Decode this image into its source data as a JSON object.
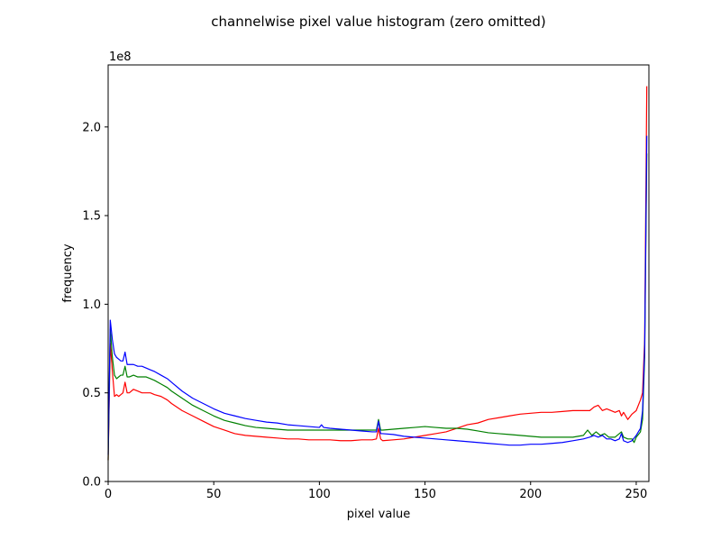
{
  "chart_data": {
    "type": "line",
    "title": "channelwise pixel value histogram (zero omitted)",
    "xlabel": "pixel value",
    "ylabel": "frequency",
    "y_offset_label": "1e8",
    "xlim": [
      0,
      256
    ],
    "ylim": [
      0,
      2.35
    ],
    "y_unit_multiplier": 100000000,
    "x_ticks": [
      0,
      50,
      100,
      150,
      200,
      250
    ],
    "x_tick_labels": [
      "0",
      "50",
      "100",
      "150",
      "200",
      "250"
    ],
    "y_ticks": [
      0,
      0.5,
      1.0,
      1.5,
      2.0
    ],
    "y_tick_labels": [
      "0.0",
      "0.5",
      "1.0",
      "1.5",
      "2.0"
    ],
    "grid": false,
    "legend": "none",
    "series": [
      {
        "color": "#ff0000",
        "points": [
          [
            0,
            0.12
          ],
          [
            1,
            0.78
          ],
          [
            2,
            0.62
          ],
          [
            3,
            0.48
          ],
          [
            4,
            0.49
          ],
          [
            5,
            0.48
          ],
          [
            6,
            0.49
          ],
          [
            7,
            0.5
          ],
          [
            8,
            0.56
          ],
          [
            9,
            0.5
          ],
          [
            10,
            0.5
          ],
          [
            12,
            0.52
          ],
          [
            14,
            0.51
          ],
          [
            16,
            0.5
          ],
          [
            18,
            0.5
          ],
          [
            20,
            0.5
          ],
          [
            22,
            0.49
          ],
          [
            25,
            0.48
          ],
          [
            28,
            0.46
          ],
          [
            30,
            0.44
          ],
          [
            35,
            0.4
          ],
          [
            40,
            0.37
          ],
          [
            45,
            0.34
          ],
          [
            50,
            0.31
          ],
          [
            55,
            0.29
          ],
          [
            60,
            0.27
          ],
          [
            65,
            0.26
          ],
          [
            70,
            0.255
          ],
          [
            75,
            0.25
          ],
          [
            80,
            0.245
          ],
          [
            85,
            0.24
          ],
          [
            90,
            0.24
          ],
          [
            95,
            0.235
          ],
          [
            100,
            0.235
          ],
          [
            105,
            0.235
          ],
          [
            110,
            0.23
          ],
          [
            115,
            0.23
          ],
          [
            120,
            0.235
          ],
          [
            125,
            0.235
          ],
          [
            127,
            0.24
          ],
          [
            128,
            0.3
          ],
          [
            129,
            0.24
          ],
          [
            130,
            0.23
          ],
          [
            135,
            0.235
          ],
          [
            140,
            0.24
          ],
          [
            145,
            0.25
          ],
          [
            150,
            0.26
          ],
          [
            155,
            0.27
          ],
          [
            160,
            0.28
          ],
          [
            165,
            0.3
          ],
          [
            170,
            0.32
          ],
          [
            175,
            0.33
          ],
          [
            180,
            0.35
          ],
          [
            185,
            0.36
          ],
          [
            190,
            0.37
          ],
          [
            195,
            0.38
          ],
          [
            200,
            0.385
          ],
          [
            205,
            0.39
          ],
          [
            210,
            0.39
          ],
          [
            215,
            0.395
          ],
          [
            220,
            0.4
          ],
          [
            225,
            0.4
          ],
          [
            228,
            0.4
          ],
          [
            230,
            0.42
          ],
          [
            232,
            0.43
          ],
          [
            234,
            0.4
          ],
          [
            236,
            0.41
          ],
          [
            238,
            0.4
          ],
          [
            240,
            0.39
          ],
          [
            242,
            0.4
          ],
          [
            243,
            0.37
          ],
          [
            244,
            0.39
          ],
          [
            246,
            0.35
          ],
          [
            248,
            0.38
          ],
          [
            250,
            0.4
          ],
          [
            252,
            0.46
          ],
          [
            253,
            0.5
          ],
          [
            254,
            0.8
          ],
          [
            255,
            2.23
          ]
        ]
      },
      {
        "color": "#008000",
        "points": [
          [
            0,
            0.12
          ],
          [
            1,
            0.86
          ],
          [
            2,
            0.7
          ],
          [
            3,
            0.6
          ],
          [
            4,
            0.58
          ],
          [
            5,
            0.59
          ],
          [
            6,
            0.6
          ],
          [
            7,
            0.6
          ],
          [
            8,
            0.65
          ],
          [
            9,
            0.59
          ],
          [
            10,
            0.59
          ],
          [
            12,
            0.6
          ],
          [
            14,
            0.59
          ],
          [
            16,
            0.59
          ],
          [
            18,
            0.59
          ],
          [
            20,
            0.58
          ],
          [
            22,
            0.57
          ],
          [
            25,
            0.55
          ],
          [
            28,
            0.53
          ],
          [
            30,
            0.51
          ],
          [
            35,
            0.47
          ],
          [
            40,
            0.43
          ],
          [
            45,
            0.4
          ],
          [
            50,
            0.37
          ],
          [
            55,
            0.345
          ],
          [
            60,
            0.33
          ],
          [
            65,
            0.315
          ],
          [
            70,
            0.305
          ],
          [
            75,
            0.3
          ],
          [
            80,
            0.295
          ],
          [
            85,
            0.29
          ],
          [
            90,
            0.29
          ],
          [
            95,
            0.29
          ],
          [
            100,
            0.29
          ],
          [
            105,
            0.29
          ],
          [
            110,
            0.29
          ],
          [
            115,
            0.29
          ],
          [
            120,
            0.29
          ],
          [
            125,
            0.29
          ],
          [
            127,
            0.29
          ],
          [
            128,
            0.35
          ],
          [
            129,
            0.29
          ],
          [
            130,
            0.29
          ],
          [
            135,
            0.295
          ],
          [
            140,
            0.3
          ],
          [
            145,
            0.305
          ],
          [
            150,
            0.31
          ],
          [
            155,
            0.305
          ],
          [
            160,
            0.3
          ],
          [
            165,
            0.3
          ],
          [
            170,
            0.295
          ],
          [
            175,
            0.285
          ],
          [
            180,
            0.275
          ],
          [
            185,
            0.27
          ],
          [
            190,
            0.265
          ],
          [
            195,
            0.26
          ],
          [
            200,
            0.255
          ],
          [
            205,
            0.25
          ],
          [
            210,
            0.25
          ],
          [
            215,
            0.25
          ],
          [
            220,
            0.25
          ],
          [
            225,
            0.26
          ],
          [
            227,
            0.29
          ],
          [
            229,
            0.26
          ],
          [
            231,
            0.28
          ],
          [
            233,
            0.26
          ],
          [
            235,
            0.27
          ],
          [
            237,
            0.25
          ],
          [
            240,
            0.25
          ],
          [
            243,
            0.28
          ],
          [
            244,
            0.25
          ],
          [
            246,
            0.24
          ],
          [
            248,
            0.24
          ],
          [
            249,
            0.22
          ],
          [
            250,
            0.25
          ],
          [
            252,
            0.28
          ],
          [
            253,
            0.35
          ],
          [
            254,
            0.7
          ],
          [
            255,
            1.85
          ]
        ]
      },
      {
        "color": "#0000ff",
        "points": [
          [
            0,
            0.15
          ],
          [
            1,
            0.91
          ],
          [
            2,
            0.8
          ],
          [
            3,
            0.72
          ],
          [
            4,
            0.7
          ],
          [
            5,
            0.69
          ],
          [
            6,
            0.68
          ],
          [
            7,
            0.68
          ],
          [
            8,
            0.73
          ],
          [
            9,
            0.66
          ],
          [
            10,
            0.66
          ],
          [
            12,
            0.66
          ],
          [
            14,
            0.65
          ],
          [
            16,
            0.65
          ],
          [
            18,
            0.64
          ],
          [
            20,
            0.63
          ],
          [
            22,
            0.62
          ],
          [
            25,
            0.6
          ],
          [
            28,
            0.58
          ],
          [
            30,
            0.56
          ],
          [
            35,
            0.51
          ],
          [
            40,
            0.47
          ],
          [
            45,
            0.44
          ],
          [
            50,
            0.41
          ],
          [
            55,
            0.385
          ],
          [
            60,
            0.37
          ],
          [
            65,
            0.355
          ],
          [
            70,
            0.345
          ],
          [
            75,
            0.335
          ],
          [
            80,
            0.33
          ],
          [
            85,
            0.32
          ],
          [
            90,
            0.315
          ],
          [
            95,
            0.31
          ],
          [
            100,
            0.305
          ],
          [
            101,
            0.32
          ],
          [
            102,
            0.305
          ],
          [
            105,
            0.3
          ],
          [
            110,
            0.295
          ],
          [
            115,
            0.29
          ],
          [
            120,
            0.285
          ],
          [
            125,
            0.28
          ],
          [
            127,
            0.28
          ],
          [
            128,
            0.34
          ],
          [
            129,
            0.27
          ],
          [
            130,
            0.27
          ],
          [
            135,
            0.265
          ],
          [
            140,
            0.255
          ],
          [
            145,
            0.25
          ],
          [
            150,
            0.245
          ],
          [
            155,
            0.24
          ],
          [
            160,
            0.235
          ],
          [
            165,
            0.23
          ],
          [
            170,
            0.225
          ],
          [
            175,
            0.22
          ],
          [
            180,
            0.215
          ],
          [
            185,
            0.21
          ],
          [
            190,
            0.205
          ],
          [
            195,
            0.205
          ],
          [
            200,
            0.21
          ],
          [
            205,
            0.21
          ],
          [
            210,
            0.215
          ],
          [
            215,
            0.22
          ],
          [
            220,
            0.23
          ],
          [
            225,
            0.24
          ],
          [
            228,
            0.25
          ],
          [
            230,
            0.26
          ],
          [
            232,
            0.25
          ],
          [
            234,
            0.26
          ],
          [
            236,
            0.24
          ],
          [
            238,
            0.24
          ],
          [
            240,
            0.23
          ],
          [
            242,
            0.24
          ],
          [
            243,
            0.27
          ],
          [
            244,
            0.23
          ],
          [
            246,
            0.22
          ],
          [
            248,
            0.23
          ],
          [
            250,
            0.26
          ],
          [
            252,
            0.3
          ],
          [
            253,
            0.4
          ],
          [
            254,
            0.75
          ],
          [
            255,
            1.95
          ]
        ]
      }
    ]
  }
}
